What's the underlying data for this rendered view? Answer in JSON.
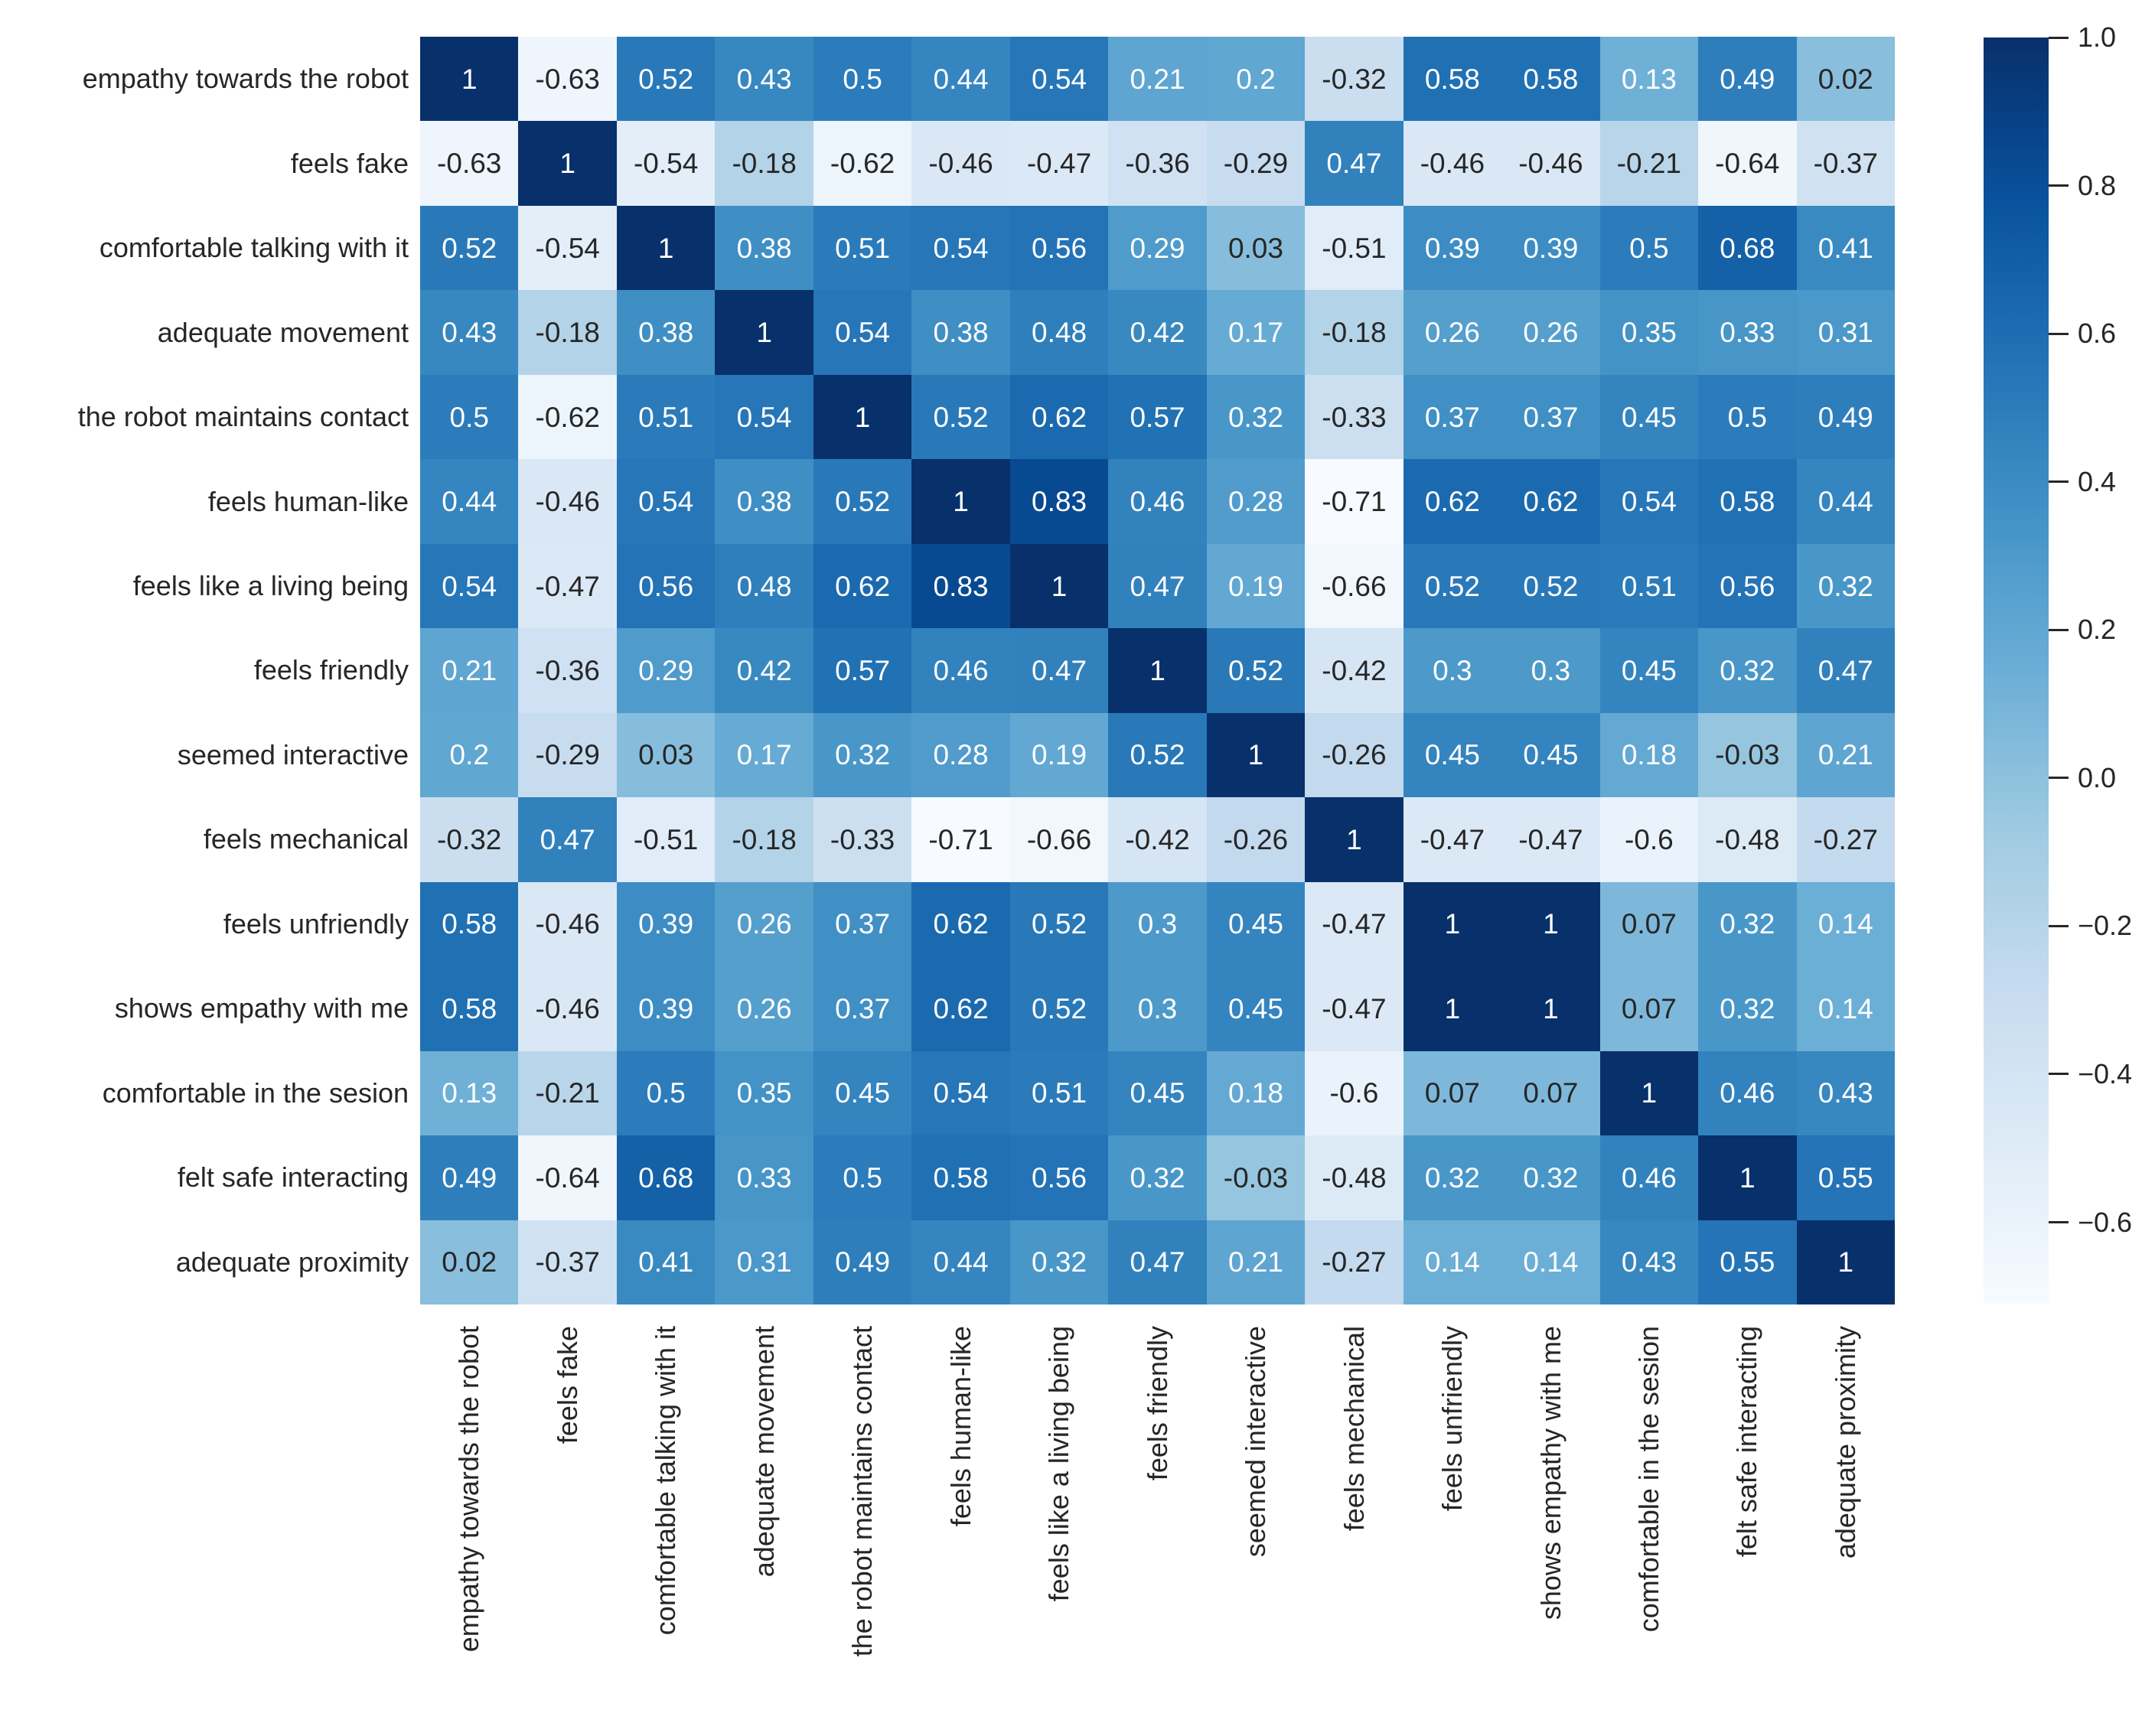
{
  "chart_data": {
    "type": "heatmap",
    "title": "",
    "xlabel": "",
    "ylabel": "",
    "colormap": "Blues",
    "vmin": -0.71,
    "vmax": 1.0,
    "grid": false,
    "annotations": true,
    "categories": [
      "empathy towards the robot",
      "feels fake",
      "comfortable talking with it",
      "adequate movement",
      "the robot maintains contact",
      "feels human-like",
      "feels like a living being",
      "feels friendly",
      "seemed interactive",
      "feels mechanical",
      "feels unfriendly",
      "shows empathy with me",
      "comfortable in the sesion",
      "felt safe interacting",
      "adequate proximity"
    ],
    "matrix": [
      [
        1,
        -0.63,
        0.52,
        0.43,
        0.5,
        0.44,
        0.54,
        0.21,
        0.2,
        -0.32,
        0.58,
        0.58,
        0.13,
        0.49,
        0.02
      ],
      [
        -0.63,
        1,
        -0.54,
        -0.18,
        -0.62,
        -0.46,
        -0.47,
        -0.36,
        -0.29,
        0.47,
        -0.46,
        -0.46,
        -0.21,
        -0.64,
        -0.37
      ],
      [
        0.52,
        -0.54,
        1,
        0.38,
        0.51,
        0.54,
        0.56,
        0.29,
        0.03,
        -0.51,
        0.39,
        0.39,
        0.5,
        0.68,
        0.41
      ],
      [
        0.43,
        -0.18,
        0.38,
        1,
        0.54,
        0.38,
        0.48,
        0.42,
        0.17,
        -0.18,
        0.26,
        0.26,
        0.35,
        0.33,
        0.31
      ],
      [
        0.5,
        -0.62,
        0.51,
        0.54,
        1,
        0.52,
        0.62,
        0.57,
        0.32,
        -0.33,
        0.37,
        0.37,
        0.45,
        0.5,
        0.49
      ],
      [
        0.44,
        -0.46,
        0.54,
        0.38,
        0.52,
        1,
        0.83,
        0.46,
        0.28,
        -0.71,
        0.62,
        0.62,
        0.54,
        0.58,
        0.44
      ],
      [
        0.54,
        -0.47,
        0.56,
        0.48,
        0.62,
        0.83,
        1,
        0.47,
        0.19,
        -0.66,
        0.52,
        0.52,
        0.51,
        0.56,
        0.32
      ],
      [
        0.21,
        -0.36,
        0.29,
        0.42,
        0.57,
        0.46,
        0.47,
        1,
        0.52,
        -0.42,
        0.3,
        0.3,
        0.45,
        0.32,
        0.47
      ],
      [
        0.2,
        -0.29,
        0.03,
        0.17,
        0.32,
        0.28,
        0.19,
        0.52,
        1,
        -0.26,
        0.45,
        0.45,
        0.18,
        -0.03,
        0.21
      ],
      [
        -0.32,
        0.47,
        -0.51,
        -0.18,
        -0.33,
        -0.71,
        -0.66,
        -0.42,
        -0.26,
        1,
        -0.47,
        -0.47,
        -0.6,
        -0.48,
        -0.27
      ],
      [
        0.58,
        -0.46,
        0.39,
        0.26,
        0.37,
        0.62,
        0.52,
        0.3,
        0.45,
        -0.47,
        1,
        1,
        0.07,
        0.32,
        0.14
      ],
      [
        0.58,
        -0.46,
        0.39,
        0.26,
        0.37,
        0.62,
        0.52,
        0.3,
        0.45,
        -0.47,
        1,
        1,
        0.07,
        0.32,
        0.14
      ],
      [
        0.13,
        -0.21,
        0.5,
        0.35,
        0.45,
        0.54,
        0.51,
        0.45,
        0.18,
        -0.6,
        0.07,
        0.07,
        1,
        0.46,
        0.43
      ],
      [
        0.49,
        -0.64,
        0.68,
        0.33,
        0.5,
        0.58,
        0.56,
        0.32,
        -0.03,
        -0.48,
        0.32,
        0.32,
        0.46,
        1,
        0.55
      ],
      [
        0.02,
        -0.37,
        0.41,
        0.31,
        0.49,
        0.44,
        0.32,
        0.47,
        0.21,
        -0.27,
        0.14,
        0.14,
        0.43,
        0.55,
        1
      ]
    ],
    "colorbar": {
      "position": "right",
      "tick_values": [
        1.0,
        0.8,
        0.6,
        0.4,
        0.2,
        0.0,
        -0.2,
        -0.4,
        -0.6
      ],
      "tick_labels": [
        "1.0",
        "0.8",
        "0.6",
        "0.4",
        "0.2",
        "0.0",
        "−0.2",
        "−0.4",
        "−0.6"
      ]
    },
    "colors": {
      "blues_anchors": [
        "#f7fbff",
        "#deebf7",
        "#c6dbef",
        "#9ecae1",
        "#6baed6",
        "#4292c6",
        "#2171b5",
        "#08519c",
        "#08306b"
      ],
      "dark_text": "#262626",
      "light_text": "#ffffff",
      "background": "#ffffff"
    }
  }
}
